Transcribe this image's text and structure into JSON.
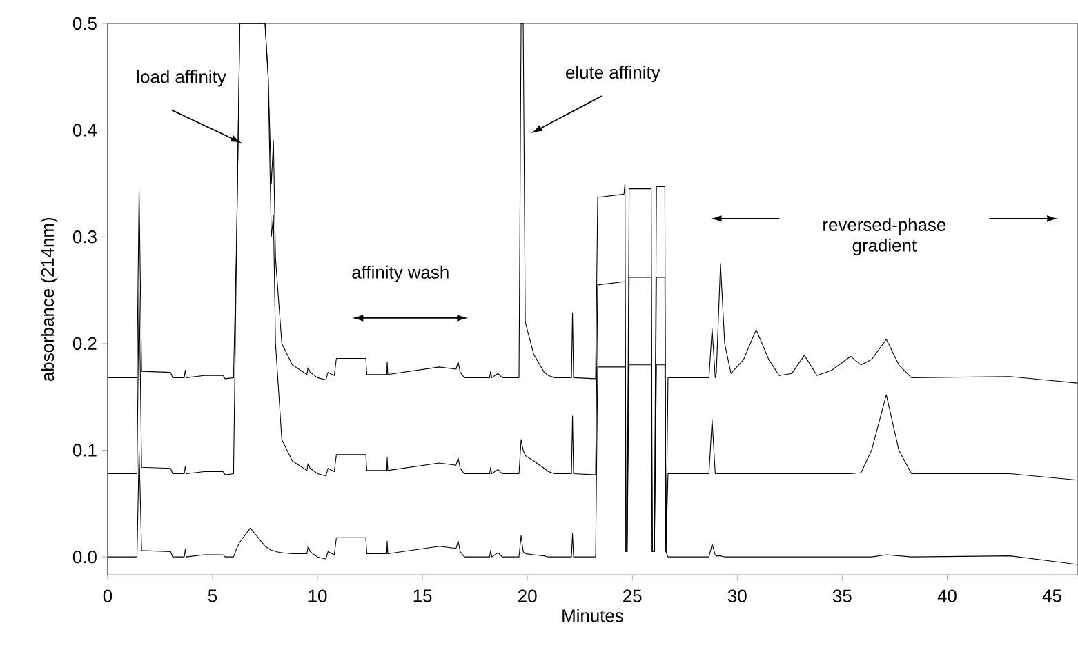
{
  "chart_data": {
    "type": "line",
    "xlabel": "Minutes",
    "ylabel": "absorbance (214nm)",
    "xlim": [
      0,
      46.2
    ],
    "ylim": [
      -0.017,
      0.5
    ],
    "xticks": [
      0,
      5,
      10,
      15,
      20,
      25,
      30,
      35,
      40,
      45
    ],
    "yticks": [
      {
        "value": 0,
        "label": "0.0"
      },
      {
        "value": 0.1,
        "label": "0.1"
      },
      {
        "value": 0.2,
        "label": "0.2"
      },
      {
        "value": 0.3,
        "label": "0.3"
      },
      {
        "value": 0.4,
        "label": "0.4"
      },
      {
        "value": 0.5,
        "label": "0.5"
      }
    ],
    "x": [
      0,
      1.4,
      1.5,
      1.62,
      3.0,
      3.1,
      3.65,
      3.7,
      3.75,
      4.6,
      5.5,
      5.6,
      6.0,
      6.15,
      6.3,
      6.8,
      7.5,
      7.65,
      7.8,
      7.9,
      8.0,
      8.3,
      8.8,
      9.5,
      9.55,
      9.65,
      10.0,
      10.4,
      10.5,
      10.8,
      10.9,
      12.3,
      12.35,
      13.3,
      13.32,
      13.35,
      15.8,
      16.6,
      16.7,
      16.8,
      17.0,
      18.2,
      18.25,
      18.3,
      18.6,
      18.8,
      19.6,
      19.7,
      19.8,
      19.9,
      20.3,
      20.8,
      21.0,
      21.3,
      22.1,
      22.15,
      22.2,
      23.25,
      23.35,
      24.6,
      24.65,
      24.7,
      24.75,
      24.85,
      25.9,
      25.95,
      26.05,
      26.15,
      26.55,
      26.6,
      26.7,
      28.65,
      28.8,
      28.95,
      29.0,
      29.2,
      29.4,
      29.7,
      30.3,
      30.9,
      31.5,
      32.0,
      32.6,
      33.2,
      33.8,
      34.5,
      35.4,
      35.9,
      36.4,
      37.1,
      37.7,
      38.3,
      43.0,
      46.2
    ],
    "series": [
      {
        "color": "#000000",
        "values": [
          0.168,
          0.168,
          0.345,
          0.174,
          0.173,
          0.168,
          0.168,
          0.175,
          0.168,
          0.17,
          0.17,
          0.167,
          0.168,
          0.3,
          0.5,
          0.5,
          0.5,
          0.45,
          0.35,
          0.39,
          0.28,
          0.2,
          0.18,
          0.171,
          0.178,
          0.173,
          0.168,
          0.166,
          0.173,
          0.17,
          0.186,
          0.186,
          0.171,
          0.171,
          0.183,
          0.171,
          0.178,
          0.176,
          0.183,
          0.173,
          0.168,
          0.168,
          0.174,
          0.168,
          0.172,
          0.168,
          0.168,
          0.5,
          0.5,
          0.22,
          0.19,
          0.173,
          0.17,
          0.168,
          0.168,
          0.229,
          0.168,
          0.167,
          0.337,
          0.34,
          0.35,
          0.005,
          0.005,
          0.345,
          0.345,
          0.005,
          0.005,
          0.347,
          0.347,
          0.005,
          0.168,
          0.168,
          0.214,
          0.168,
          0.172,
          0.275,
          0.2,
          0.172,
          0.185,
          0.213,
          0.185,
          0.17,
          0.172,
          0.189,
          0.17,
          0.175,
          0.188,
          0.18,
          0.185,
          0.204,
          0.18,
          0.168,
          0.169,
          0.163
        ]
      },
      {
        "color": "#000000",
        "values": [
          0.078,
          0.078,
          0.255,
          0.084,
          0.083,
          0.078,
          0.078,
          0.085,
          0.078,
          0.08,
          0.08,
          0.077,
          0.078,
          0.3,
          0.5,
          0.5,
          0.5,
          0.45,
          0.3,
          0.32,
          0.2,
          0.11,
          0.09,
          0.081,
          0.088,
          0.083,
          0.078,
          0.076,
          0.083,
          0.08,
          0.096,
          0.096,
          0.081,
          0.081,
          0.093,
          0.081,
          0.088,
          0.086,
          0.093,
          0.083,
          0.078,
          0.078,
          0.084,
          0.078,
          0.082,
          0.078,
          0.078,
          0.11,
          0.1,
          0.095,
          0.09,
          0.083,
          0.08,
          0.078,
          0.078,
          0.132,
          0.078,
          0.077,
          0.255,
          0.258,
          0.258,
          0.005,
          0.005,
          0.262,
          0.262,
          0.005,
          0.005,
          0.262,
          0.262,
          0.005,
          0.078,
          0.078,
          0.129,
          0.078,
          0.078,
          0.078,
          0.078,
          0.078,
          0.078,
          0.078,
          0.078,
          0.078,
          0.078,
          0.078,
          0.078,
          0.078,
          0.078,
          0.079,
          0.1,
          0.152,
          0.1,
          0.078,
          0.078,
          0.072
        ]
      },
      {
        "color": "#000000",
        "values": [
          0,
          0,
          0.1,
          0.006,
          0.005,
          0,
          0,
          0.007,
          0,
          0.002,
          0.002,
          0,
          0,
          0.008,
          0.014,
          0.027,
          0.01,
          0.008,
          0.006,
          0.006,
          0.005,
          0.004,
          0.003,
          0.003,
          0.01,
          0.005,
          0,
          -0.002,
          0.005,
          0.002,
          0.018,
          0.018,
          0.003,
          0.003,
          0.015,
          0.003,
          0.01,
          0.008,
          0.015,
          0.005,
          0,
          0,
          0.006,
          0,
          0.004,
          0,
          0,
          0.02,
          0.005,
          0.003,
          0.002,
          0.001,
          0,
          0,
          0,
          0.022,
          0,
          0,
          0.178,
          0.178,
          0.178,
          0.005,
          0.005,
          0.18,
          0.18,
          0.005,
          0.005,
          0.18,
          0.18,
          0.005,
          0,
          0,
          0.012,
          0.002,
          0.001,
          0.001,
          0,
          0,
          0,
          0,
          0,
          0,
          0,
          0,
          0,
          0,
          0,
          0,
          0,
          0.002,
          0.001,
          0,
          0.001,
          -0.007
        ]
      }
    ],
    "annotations": [
      "load affinity",
      "elute affinity",
      "affinity wash",
      "reversed-phase gradient"
    ]
  }
}
